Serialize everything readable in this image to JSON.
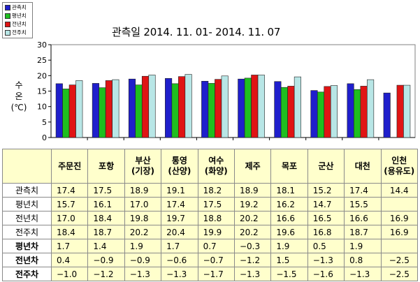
{
  "legend": [
    {
      "label": "관측치",
      "color": "#1f1fcc"
    },
    {
      "label": "평년치",
      "color": "#1fbf1f"
    },
    {
      "label": "전년치",
      "color": "#e01414"
    },
    {
      "label": "전주치",
      "color": "#b8e6e6"
    }
  ],
  "chart_data": {
    "type": "bar",
    "title": "관측일 2014. 11. 01-  2014. 11. 07",
    "ylabel": "수\n온\n(℃)",
    "ylim": [
      0,
      30
    ],
    "yticks": [
      "0",
      "5",
      "10",
      "15",
      "20",
      "25",
      "30"
    ],
    "grid": false,
    "legend_position": "top-left",
    "categories": [
      "주문진",
      "포항",
      "부산\n(기장)",
      "통영\n(산양)",
      "여수\n(화양)",
      "제주",
      "목포",
      "군산",
      "대천",
      "인천\n(용유도)"
    ],
    "series": [
      {
        "name": "관측치",
        "color": "#1f1fcc",
        "values": [
          17.4,
          17.5,
          18.9,
          19.1,
          18.2,
          18.9,
          18.1,
          15.2,
          17.4,
          14.4
        ]
      },
      {
        "name": "평년치",
        "color": "#1fbf1f",
        "values": [
          15.7,
          16.1,
          17.0,
          17.4,
          17.5,
          19.2,
          16.2,
          14.7,
          15.5,
          null
        ]
      },
      {
        "name": "전년치",
        "color": "#e01414",
        "values": [
          17.0,
          18.4,
          19.8,
          19.7,
          18.8,
          20.2,
          16.6,
          16.5,
          16.6,
          16.9
        ]
      },
      {
        "name": "전주치",
        "color": "#b8e6e6",
        "values": [
          18.4,
          18.7,
          20.2,
          20.4,
          19.9,
          20.2,
          19.6,
          16.8,
          18.7,
          16.9
        ]
      }
    ]
  },
  "table": {
    "columns": [
      "주문진",
      "포항",
      "부산\n(기장)",
      "통영\n(산양)",
      "여수\n(화양)",
      "제주",
      "목포",
      "군산",
      "대천",
      "인천\n(용유도)"
    ],
    "rows": [
      {
        "label": "관측치",
        "bold": false,
        "values": [
          "17.4",
          "17.5",
          "18.9",
          "19.1",
          "18.2",
          "18.9",
          "18.1",
          "15.2",
          "17.4",
          "14.4"
        ]
      },
      {
        "label": "평년치",
        "bold": false,
        "values": [
          "15.7",
          "16.1",
          "17.0",
          "17.4",
          "17.5",
          "19.2",
          "16.2",
          "14.7",
          "15.5",
          ""
        ]
      },
      {
        "label": "전년치",
        "bold": false,
        "values": [
          "17.0",
          "18.4",
          "19.8",
          "19.7",
          "18.8",
          "20.2",
          "16.6",
          "16.5",
          "16.6",
          "16.9"
        ]
      },
      {
        "label": "전주치",
        "bold": false,
        "values": [
          "18.4",
          "18.7",
          "20.2",
          "20.4",
          "19.9",
          "20.2",
          "19.6",
          "16.8",
          "18.7",
          "16.9"
        ]
      },
      {
        "label": "평년차",
        "bold": true,
        "values": [
          "1.7",
          "1.4",
          "1.9",
          "1.7",
          "0.7",
          "−0.3",
          "1.9",
          "0.5",
          "1.9",
          ""
        ]
      },
      {
        "label": "전년차",
        "bold": true,
        "values": [
          "0.4",
          "−0.9",
          "−0.9",
          "−0.6",
          "−0.7",
          "−1.2",
          "1.5",
          "−1.3",
          "0.8",
          "−2.5"
        ]
      },
      {
        "label": "전주차",
        "bold": true,
        "values": [
          "−1.0",
          "−1.2",
          "−1.3",
          "−1.3",
          "−1.7",
          "−1.3",
          "−1.5",
          "−1.6",
          "−1.3",
          "−2.5"
        ]
      }
    ]
  }
}
